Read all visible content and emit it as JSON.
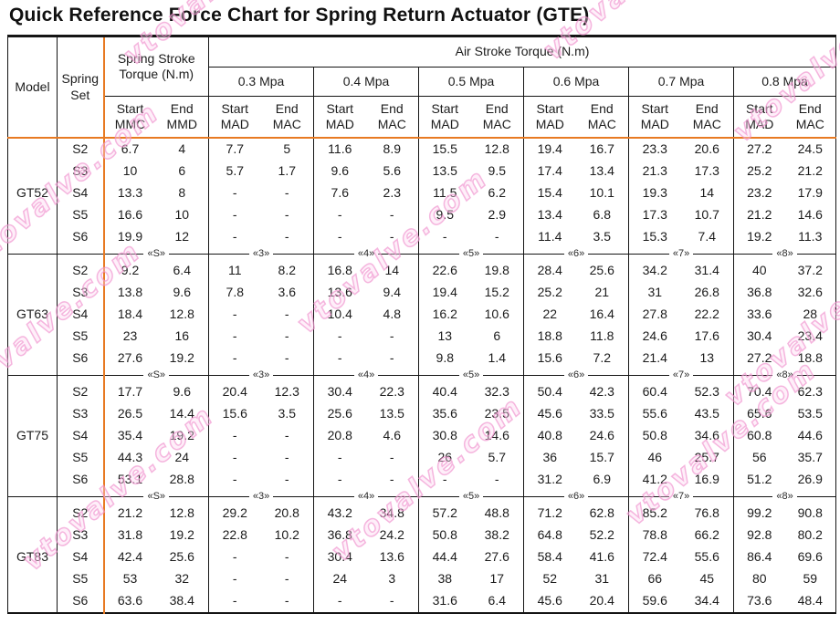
{
  "title": "Quick Reference Force Chart for Spring Return Actuator (GTE)",
  "header": {
    "model": "Model",
    "spring_set": "Spring\nSet",
    "spring_stroke": "Spring Stroke\nTorque (N.m)",
    "air_stroke": "Air Stroke Torque (N.m)",
    "pressures": [
      "0.3 Mpa",
      "0.4 Mpa",
      "0.5 Mpa",
      "0.6 Mpa",
      "0.7 Mpa",
      "0.8 Mpa"
    ],
    "spring_sub": [
      "Start\nMMC",
      "End\nMMD"
    ],
    "air_sub": [
      "Start\nMAD",
      "End\nMAC"
    ]
  },
  "separator_markers": [
    "«S»",
    "«3»",
    "«4»",
    "«5»",
    "«6»",
    "«7»",
    "«8»"
  ],
  "groups": [
    {
      "model": "GT52",
      "rows": [
        {
          "set": "S2",
          "values": [
            "6.7",
            "4",
            "7.7",
            "5",
            "11.6",
            "8.9",
            "15.5",
            "12.8",
            "19.4",
            "16.7",
            "23.3",
            "20.6",
            "27.2",
            "24.5"
          ]
        },
        {
          "set": "S3",
          "values": [
            "10",
            "6",
            "5.7",
            "1.7",
            "9.6",
            "5.6",
            "13.5",
            "9.5",
            "17.4",
            "13.4",
            "21.3",
            "17.3",
            "25.2",
            "21.2"
          ]
        },
        {
          "set": "S4",
          "values": [
            "13.3",
            "8",
            "-",
            "-",
            "7.6",
            "2.3",
            "11.5",
            "6.2",
            "15.4",
            "10.1",
            "19.3",
            "14",
            "23.2",
            "17.9"
          ]
        },
        {
          "set": "S5",
          "values": [
            "16.6",
            "10",
            "-",
            "-",
            "-",
            "-",
            "9.5",
            "2.9",
            "13.4",
            "6.8",
            "17.3",
            "10.7",
            "21.2",
            "14.6"
          ]
        },
        {
          "set": "S6",
          "values": [
            "19.9",
            "12",
            "-",
            "-",
            "-",
            "-",
            "-",
            "-",
            "11.4",
            "3.5",
            "15.3",
            "7.4",
            "19.2",
            "11.3"
          ]
        }
      ]
    },
    {
      "model": "GT63",
      "rows": [
        {
          "set": "S2",
          "values": [
            "9.2",
            "6.4",
            "11",
            "8.2",
            "16.8",
            "14",
            "22.6",
            "19.8",
            "28.4",
            "25.6",
            "34.2",
            "31.4",
            "40",
            "37.2"
          ]
        },
        {
          "set": "S3",
          "values": [
            "13.8",
            "9.6",
            "7.8",
            "3.6",
            "13.6",
            "9.4",
            "19.4",
            "15.2",
            "25.2",
            "21",
            "31",
            "26.8",
            "36.8",
            "32.6"
          ]
        },
        {
          "set": "S4",
          "values": [
            "18.4",
            "12.8",
            "-",
            "-",
            "10.4",
            "4.8",
            "16.2",
            "10.6",
            "22",
            "16.4",
            "27.8",
            "22.2",
            "33.6",
            "28"
          ]
        },
        {
          "set": "S5",
          "values": [
            "23",
            "16",
            "-",
            "-",
            "-",
            "-",
            "13",
            "6",
            "18.8",
            "11.8",
            "24.6",
            "17.6",
            "30.4",
            "23.4"
          ]
        },
        {
          "set": "S6",
          "values": [
            "27.6",
            "19.2",
            "-",
            "-",
            "-",
            "-",
            "9.8",
            "1.4",
            "15.6",
            "7.2",
            "21.4",
            "13",
            "27.2",
            "18.8"
          ]
        }
      ]
    },
    {
      "model": "GT75",
      "rows": [
        {
          "set": "S2",
          "values": [
            "17.7",
            "9.6",
            "20.4",
            "12.3",
            "30.4",
            "22.3",
            "40.4",
            "32.3",
            "50.4",
            "42.3",
            "60.4",
            "52.3",
            "70.4",
            "62.3"
          ]
        },
        {
          "set": "S3",
          "values": [
            "26.5",
            "14.4",
            "15.6",
            "3.5",
            "25.6",
            "13.5",
            "35.6",
            "23.5",
            "45.6",
            "33.5",
            "55.6",
            "43.5",
            "65.6",
            "53.5"
          ]
        },
        {
          "set": "S4",
          "values": [
            "35.4",
            "19.2",
            "-",
            "-",
            "20.8",
            "4.6",
            "30.8",
            "14.6",
            "40.8",
            "24.6",
            "50.8",
            "34.6",
            "60.8",
            "44.6"
          ]
        },
        {
          "set": "S5",
          "values": [
            "44.3",
            "24",
            "-",
            "-",
            "-",
            "-",
            "26",
            "5.7",
            "36",
            "15.7",
            "46",
            "25.7",
            "56",
            "35.7"
          ]
        },
        {
          "set": "S6",
          "values": [
            "53.1",
            "28.8",
            "-",
            "-",
            "-",
            "-",
            "-",
            "-",
            "31.2",
            "6.9",
            "41.2",
            "16.9",
            "51.2",
            "26.9"
          ]
        }
      ]
    },
    {
      "model": "GT83",
      "rows": [
        {
          "set": "S2",
          "values": [
            "21.2",
            "12.8",
            "29.2",
            "20.8",
            "43.2",
            "34.8",
            "57.2",
            "48.8",
            "71.2",
            "62.8",
            "85.2",
            "76.8",
            "99.2",
            "90.8"
          ]
        },
        {
          "set": "S3",
          "values": [
            "31.8",
            "19.2",
            "22.8",
            "10.2",
            "36.8",
            "24.2",
            "50.8",
            "38.2",
            "64.8",
            "52.2",
            "78.8",
            "66.2",
            "92.8",
            "80.2"
          ]
        },
        {
          "set": "S4",
          "values": [
            "42.4",
            "25.6",
            "-",
            "-",
            "30.4",
            "13.6",
            "44.4",
            "27.6",
            "58.4",
            "41.6",
            "72.4",
            "55.6",
            "86.4",
            "69.6"
          ]
        },
        {
          "set": "S5",
          "values": [
            "53",
            "32",
            "-",
            "-",
            "24",
            "3",
            "38",
            "17",
            "52",
            "31",
            "66",
            "45",
            "80",
            "59"
          ]
        },
        {
          "set": "S6",
          "values": [
            "63.6",
            "38.4",
            "-",
            "-",
            "-",
            "-",
            "31.6",
            "6.4",
            "45.6",
            "20.4",
            "59.6",
            "34.4",
            "73.6",
            "48.4"
          ]
        }
      ]
    }
  ],
  "watermark": {
    "text": "vtovalve.com"
  },
  "colors": {
    "accent_orange": "#e87a22",
    "border_black": "#141414",
    "watermark_pink": "#f092ce"
  }
}
